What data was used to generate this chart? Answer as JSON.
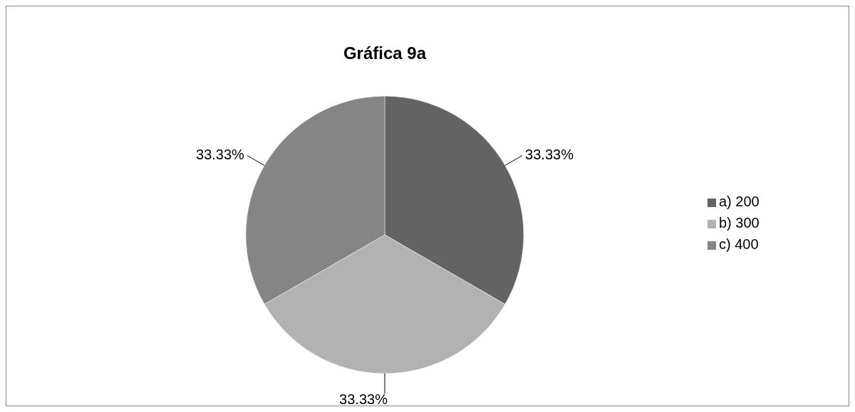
{
  "chart_data": {
    "type": "pie",
    "title": "Gráfica 9a",
    "categories": [
      "a) 200",
      "b) 300",
      "c) 400"
    ],
    "values": [
      33.33,
      33.33,
      33.33
    ],
    "colors": [
      "#636363",
      "#b2b2b2",
      "#858585"
    ],
    "value_labels": [
      "33.33%",
      "33.33%",
      "33.33%"
    ],
    "legend": "right"
  }
}
